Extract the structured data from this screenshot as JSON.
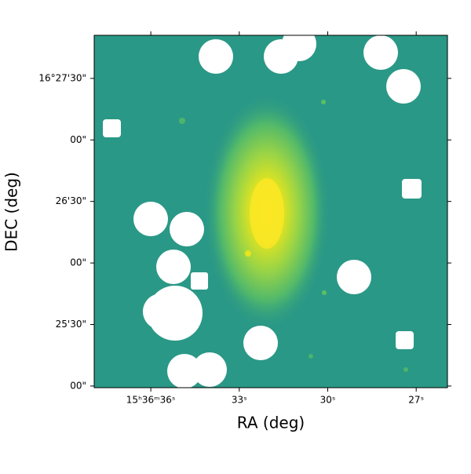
{
  "chart_data": {
    "type": "image",
    "xlabel": "RA (deg)",
    "ylabel": "DEC (deg)",
    "xlim": [
      37.92,
      25.94
    ],
    "xticks": [
      {
        "value": 36,
        "label": "15ʰ36ᵐ36ˢ"
      },
      {
        "value": 33,
        "label": "33ˢ"
      },
      {
        "value": 30,
        "label": "30ˢ"
      },
      {
        "value": 27,
        "label": "27ˢ"
      }
    ],
    "ylim": [
      -0.8,
      171
    ],
    "yticks": [
      {
        "value": 0,
        "label": "00\""
      },
      {
        "value": 30,
        "label": "25'30\""
      },
      {
        "value": 60,
        "label": "00\""
      },
      {
        "value": 90,
        "label": "26'30\""
      },
      {
        "value": 120,
        "label": "00\""
      },
      {
        "value": 150,
        "label": "16°27'30\""
      }
    ]
  }
}
